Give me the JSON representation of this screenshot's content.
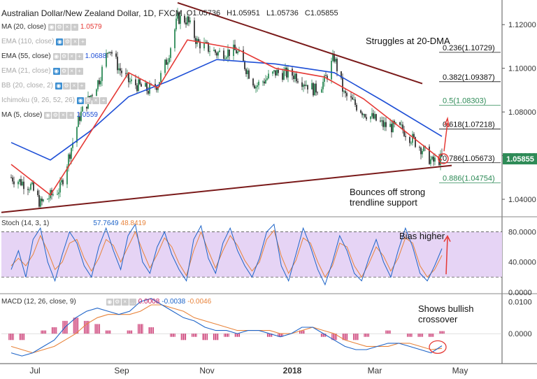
{
  "header": {
    "title": "Australian Dollar/New Zealand Dollar, 1D, FXCM",
    "open": "O1.05736",
    "high": "H1.05951",
    "low": "L1.05736",
    "close": "C1.05855"
  },
  "indicators": [
    {
      "label": "MA (20, close)",
      "value": "1.0579",
      "color": "#e53935",
      "faded": false
    },
    {
      "label": "EMA (110, close)",
      "value": "",
      "color": "#999999",
      "faded": true
    },
    {
      "label": "EMA (55, close)",
      "value": "1.0688",
      "color": "#1e4fd6",
      "faded": false
    },
    {
      "label": "EMA (21, close)",
      "value": "",
      "color": "#999999",
      "faded": true
    },
    {
      "label": "BB (20, close, 2)",
      "value": "",
      "color": "#999999",
      "faded": true
    },
    {
      "label": "Ichimoku (9, 26, 52, 26)",
      "value": "",
      "color": "#999999",
      "faded": true
    },
    {
      "label": "MA (5, close)",
      "value": "1.0559",
      "color": "#1e4fd6",
      "faded": false
    }
  ],
  "annotations": {
    "struggles": "Struggles at 20-DMA",
    "bounces_line1": "Bounces off strong",
    "bounces_line2": "trendline support",
    "bias": "Bias higher",
    "bullish_line1": "Shows bullish",
    "bullish_line2": "crossover"
  },
  "stoch_label": {
    "name": "Stoch (14, 3, 1)",
    "k": "57.7649",
    "d": "48.8419"
  },
  "macd_label": {
    "name": "MACD (12, 26, close, 9)",
    "hist": "0.0008",
    "macd": "-0.0038",
    "signal": "-0.0046"
  },
  "current_price": "1.05855",
  "colors": {
    "up": "#2e8b57",
    "down": "#333333",
    "ma20": "#e53935",
    "ema55": "#1e4fd6",
    "trend": "#7a1a1a",
    "fib": "#111111",
    "fib_highlight": "#2e8b57",
    "stoch_k": "#1e64c8",
    "stoch_d": "#e8833a",
    "stoch_band": "#e6d4f5",
    "macd_line": "#1e64c8",
    "signal_line": "#e8833a",
    "hist": "#c2185b",
    "annotation_arrow": "#e53935"
  },
  "chart_data": [
    {
      "type": "candlestick",
      "title": "Australian Dollar/New Zealand Dollar, 1D, FXCM",
      "x_ticks": [
        "Jul",
        "Sep",
        "Nov",
        "2018",
        "Mar",
        "May"
      ],
      "y_ticks": [
        1.04,
        1.06,
        1.08,
        1.1,
        1.12
      ],
      "ylim": [
        1.032,
        1.13
      ],
      "price_waypoints": [
        {
          "date": "2017-06-14",
          "close": 1.05
        },
        {
          "date": "2017-06-28",
          "close": 1.046
        },
        {
          "date": "2017-07-05",
          "close": 1.038
        },
        {
          "date": "2017-07-19",
          "close": 1.045
        },
        {
          "date": "2017-08-02",
          "close": 1.078
        },
        {
          "date": "2017-08-16",
          "close": 1.095
        },
        {
          "date": "2017-08-23",
          "close": 1.11
        },
        {
          "date": "2017-08-30",
          "close": 1.1
        },
        {
          "date": "2017-09-06",
          "close": 1.094
        },
        {
          "date": "2017-09-20",
          "close": 1.09
        },
        {
          "date": "2017-09-27",
          "close": 1.093
        },
        {
          "date": "2017-10-04",
          "close": 1.105
        },
        {
          "date": "2017-10-11",
          "close": 1.123
        },
        {
          "date": "2017-10-18",
          "close": 1.122
        },
        {
          "date": "2017-10-25",
          "close": 1.112
        },
        {
          "date": "2017-11-08",
          "close": 1.107
        },
        {
          "date": "2017-11-22",
          "close": 1.108
        },
        {
          "date": "2017-12-06",
          "close": 1.092
        },
        {
          "date": "2017-12-20",
          "close": 1.098
        },
        {
          "date": "2018-01-03",
          "close": 1.097
        },
        {
          "date": "2018-01-17",
          "close": 1.09
        },
        {
          "date": "2018-01-24",
          "close": 1.094
        },
        {
          "date": "2018-01-31",
          "close": 1.105
        },
        {
          "date": "2018-02-07",
          "close": 1.088
        },
        {
          "date": "2018-02-21",
          "close": 1.08
        },
        {
          "date": "2018-03-07",
          "close": 1.074
        },
        {
          "date": "2018-03-21",
          "close": 1.072
        },
        {
          "date": "2018-04-04",
          "close": 1.063
        },
        {
          "date": "2018-04-11",
          "close": 1.057
        },
        {
          "date": "2018-04-18",
          "close": 1.0586
        }
      ],
      "ma20_waypoints": [
        {
          "date": "2017-06-14",
          "value": 1.056
        },
        {
          "date": "2017-07-12",
          "value": 1.042
        },
        {
          "date": "2017-08-09",
          "value": 1.07
        },
        {
          "date": "2017-09-06",
          "value": 1.098
        },
        {
          "date": "2017-09-27",
          "value": 1.091
        },
        {
          "date": "2017-10-18",
          "value": 1.113
        },
        {
          "date": "2017-11-22",
          "value": 1.109
        },
        {
          "date": "2017-12-20",
          "value": 1.1
        },
        {
          "date": "2018-01-24",
          "value": 1.096
        },
        {
          "date": "2018-02-21",
          "value": 1.086
        },
        {
          "date": "2018-03-21",
          "value": 1.072
        },
        {
          "date": "2018-04-18",
          "value": 1.0579
        }
      ],
      "ema55_waypoints": [
        {
          "date": "2017-06-14",
          "value": 1.066
        },
        {
          "date": "2017-07-12",
          "value": 1.058
        },
        {
          "date": "2017-08-09",
          "value": 1.071
        },
        {
          "date": "2017-09-06",
          "value": 1.087
        },
        {
          "date": "2017-10-04",
          "value": 1.094
        },
        {
          "date": "2017-11-08",
          "value": 1.104
        },
        {
          "date": "2017-12-20",
          "value": 1.102
        },
        {
          "date": "2018-01-31",
          "value": 1.098
        },
        {
          "date": "2018-03-07",
          "value": 1.085
        },
        {
          "date": "2018-04-18",
          "value": 1.0688
        }
      ],
      "trendlines": [
        {
          "name": "support",
          "from": {
            "date": "2017-06-07",
            "value": 1.034
          },
          "to": {
            "date": "2018-04-25",
            "value": 1.0555
          }
        },
        {
          "name": "resistance",
          "from": {
            "date": "2017-10-11",
            "value": 1.13
          },
          "to": {
            "date": "2018-04-04",
            "value": 1.093
          }
        }
      ],
      "fib_levels": [
        {
          "label": "0.236(1.10729)",
          "value": 1.10729,
          "highlight": false
        },
        {
          "label": "0.382(1.09387)",
          "value": 1.09387,
          "highlight": false
        },
        {
          "label": "0.5(1.08303)",
          "value": 1.08303,
          "highlight": true
        },
        {
          "label": "0.618(1.07218)",
          "value": 1.07218,
          "highlight": false
        },
        {
          "label": "0.786(1.05673)",
          "value": 1.05673,
          "highlight": false
        },
        {
          "label": "0.886(1.04754)",
          "value": 1.04754,
          "highlight": true
        }
      ]
    },
    {
      "type": "line",
      "title": "Stoch (14, 3, 1)",
      "y_ticks": [
        0.0,
        40.0,
        80.0
      ],
      "ylim": [
        -2,
        100
      ],
      "band": [
        20,
        80
      ],
      "series": [
        {
          "name": "%K",
          "values": [
            30,
            55,
            20,
            70,
            85,
            40,
            15,
            50,
            80,
            65,
            35,
            20,
            60,
            85,
            55,
            30,
            75,
            90,
            40,
            25,
            60,
            80,
            50,
            30,
            15,
            70,
            88,
            45,
            25,
            65,
            85,
            55,
            35,
            20,
            45,
            80,
            90,
            35,
            15,
            50,
            85,
            60,
            30,
            10,
            40,
            75,
            55,
            25,
            15,
            45,
            70,
            40,
            20,
            55,
            85,
            60,
            25,
            15,
            35,
            57.8
          ]
        },
        {
          "name": "%D",
          "values": [
            35,
            45,
            35,
            50,
            75,
            55,
            30,
            40,
            65,
            70,
            45,
            28,
            45,
            70,
            62,
            40,
            60,
            80,
            55,
            32,
            50,
            72,
            60,
            38,
            22,
            55,
            80,
            55,
            32,
            55,
            75,
            62,
            42,
            28,
            40,
            70,
            82,
            48,
            25,
            42,
            72,
            65,
            40,
            20,
            35,
            65,
            60,
            35,
            20,
            38,
            60,
            48,
            28,
            45,
            72,
            65,
            35,
            20,
            30,
            48.8
          ]
        }
      ]
    },
    {
      "type": "line",
      "title": "MACD (12, 26, close, 9)",
      "y_ticks": [
        0.0,
        0.01
      ],
      "ylim": [
        -0.0085,
        0.0125
      ],
      "series": [
        {
          "name": "MACD",
          "values": [
            -0.006,
            -0.007,
            -0.006,
            -0.004,
            -0.002,
            0.002,
            0.005,
            0.007,
            0.008,
            0.007,
            0.006,
            0.007,
            0.01,
            0.011,
            0.009,
            0.007,
            0.005,
            0.004,
            0.002,
            0.001,
            0.001,
            0.0,
            0.001,
            0.001,
            0.0,
            -0.001,
            0.0,
            0.002,
            0.002,
            0.0,
            -0.002,
            -0.004,
            -0.005,
            -0.005,
            -0.004,
            -0.003,
            -0.003,
            -0.004,
            -0.005,
            -0.006,
            -0.0038
          ]
        },
        {
          "name": "Signal",
          "values": [
            -0.004,
            -0.005,
            -0.006,
            -0.005,
            -0.004,
            -0.002,
            0.0,
            0.003,
            0.005,
            0.006,
            0.006,
            0.006,
            0.007,
            0.009,
            0.009,
            0.008,
            0.007,
            0.005,
            0.004,
            0.003,
            0.002,
            0.001,
            0.001,
            0.001,
            0.001,
            0.0,
            0.0,
            0.001,
            0.002,
            0.001,
            0.0,
            -0.002,
            -0.003,
            -0.004,
            -0.004,
            -0.004,
            -0.003,
            -0.003,
            -0.004,
            -0.005,
            -0.0046
          ]
        }
      ]
    }
  ]
}
